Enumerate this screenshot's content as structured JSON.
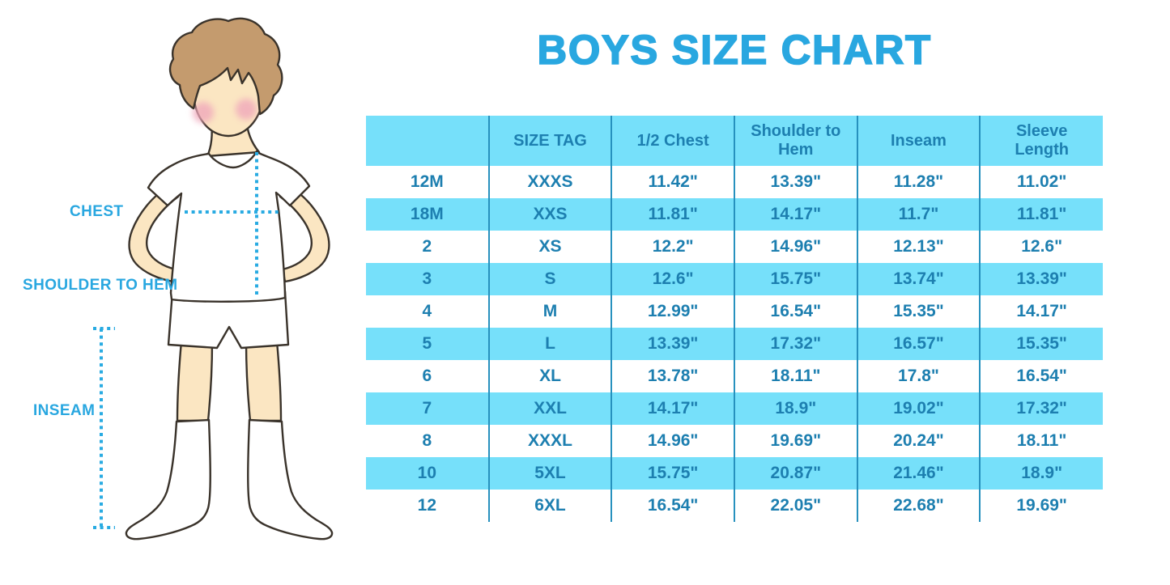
{
  "title": "BOYS SIZE CHART",
  "illustration": {
    "labels": {
      "chest": "CHEST",
      "shoulder_to_hem": "SHOULDER TO HEM",
      "inseam": "INSEAM"
    }
  },
  "chart_data": {
    "type": "table",
    "title": "BOYS SIZE CHART",
    "columns": [
      "",
      "SIZE TAG",
      "1/2 Chest",
      "Shoulder to Hem",
      "Inseam",
      "Sleeve Length"
    ],
    "rows": [
      [
        "12M",
        "XXXS",
        "11.42\"",
        "13.39\"",
        "11.28\"",
        "11.02\""
      ],
      [
        "18M",
        "XXS",
        "11.81\"",
        "14.17\"",
        "11.7\"",
        "11.81\""
      ],
      [
        "2",
        "XS",
        "12.2\"",
        "14.96\"",
        "12.13\"",
        "12.6\""
      ],
      [
        "3",
        "S",
        "12.6\"",
        "15.75\"",
        "13.74\"",
        "13.39\""
      ],
      [
        "4",
        "M",
        "12.99\"",
        "16.54\"",
        "15.35\"",
        "14.17\""
      ],
      [
        "5",
        "L",
        "13.39\"",
        "17.32\"",
        "16.57\"",
        "15.35\""
      ],
      [
        "6",
        "XL",
        "13.78\"",
        "18.11\"",
        "17.8\"",
        "16.54\""
      ],
      [
        "7",
        "XXL",
        "14.17\"",
        "18.9\"",
        "19.02\"",
        "17.32\""
      ],
      [
        "8",
        "XXXL",
        "14.96\"",
        "19.69\"",
        "20.24\"",
        "18.11\""
      ],
      [
        "10",
        "5XL",
        "15.75\"",
        "20.87\"",
        "21.46\"",
        "18.9\""
      ],
      [
        "12",
        "6XL",
        "16.54\"",
        "22.05\"",
        "22.68\"",
        "19.69\""
      ]
    ],
    "striping": "alternating white and light blue rows, light blue header",
    "legend_position": "none",
    "grid": "vertical column separators only"
  },
  "colors": {
    "accent_blue": "#29A7E0",
    "dotted_blue": "#29ABE2",
    "table_fill": "#76E0FA",
    "table_text": "#1D7FB0",
    "table_line": "#2791BE",
    "skin": "#FBE6C2",
    "hair": "#C49B6E",
    "outline": "#3A332B",
    "cheek": "#F0A8BB"
  }
}
